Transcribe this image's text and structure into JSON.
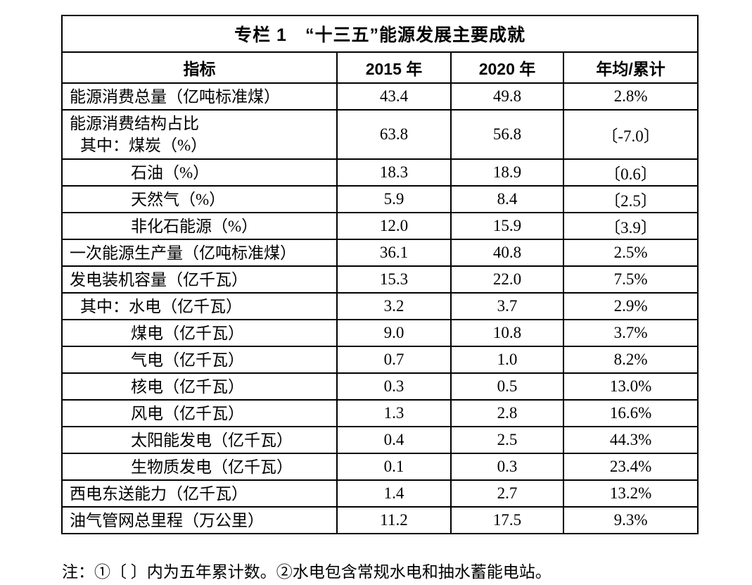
{
  "colors": {
    "text": "#000000",
    "border": "#000000",
    "background": "#ffffff"
  },
  "table": {
    "title": "专栏 1　“十三五”能源发展主要成就",
    "columns": [
      "指标",
      "2015 年",
      "2020 年",
      "年均/累计"
    ],
    "rows": [
      {
        "label": "能源消费总量（亿吨标准煤）",
        "indent": 0,
        "v2015": "43.4",
        "v2020": "49.8",
        "avg": "2.8%"
      },
      {
        "lines": [
          {
            "text": "能源消费结构占比",
            "indent": 0
          },
          {
            "text": "其中：煤炭（%）",
            "indent": 1
          }
        ],
        "v2015": "63.8",
        "v2020": "56.8",
        "avg": "〔-7.0〕"
      },
      {
        "label": "石油（%）",
        "indent": 2,
        "v2015": "18.3",
        "v2020": "18.9",
        "avg": "〔0.6〕"
      },
      {
        "label": "天然气（%）",
        "indent": 2,
        "v2015": "5.9",
        "v2020": "8.4",
        "avg": "〔2.5〕"
      },
      {
        "label": "非化石能源（%）",
        "indent": 2,
        "v2015": "12.0",
        "v2020": "15.9",
        "avg": "〔3.9〕"
      },
      {
        "label": "一次能源生产量（亿吨标准煤）",
        "indent": 0,
        "v2015": "36.1",
        "v2020": "40.8",
        "avg": "2.5%"
      },
      {
        "label": "发电装机容量（亿千瓦）",
        "indent": 0,
        "v2015": "15.3",
        "v2020": "22.0",
        "avg": "7.5%"
      },
      {
        "label": "其中：水电（亿千瓦）",
        "indent": 1,
        "v2015": "3.2",
        "v2020": "3.7",
        "avg": "2.9%"
      },
      {
        "label": "煤电（亿千瓦）",
        "indent": 2,
        "v2015": "9.0",
        "v2020": "10.8",
        "avg": "3.7%"
      },
      {
        "label": "气电（亿千瓦）",
        "indent": 2,
        "v2015": "0.7",
        "v2020": "1.0",
        "avg": "8.2%"
      },
      {
        "label": "核电（亿千瓦）",
        "indent": 2,
        "v2015": "0.3",
        "v2020": "0.5",
        "avg": "13.0%"
      },
      {
        "label": "风电（亿千瓦）",
        "indent": 2,
        "v2015": "1.3",
        "v2020": "2.8",
        "avg": "16.6%"
      },
      {
        "label": "太阳能发电（亿千瓦）",
        "indent": 2,
        "v2015": "0.4",
        "v2020": "2.5",
        "avg": "44.3%"
      },
      {
        "label": "生物质发电（亿千瓦）",
        "indent": 2,
        "v2015": "0.1",
        "v2020": "0.3",
        "avg": "23.4%"
      },
      {
        "label": "西电东送能力（亿千瓦）",
        "indent": 0,
        "v2015": "1.4",
        "v2020": "2.7",
        "avg": "13.2%"
      },
      {
        "label": "油气管网总里程（万公里）",
        "indent": 0,
        "v2015": "11.2",
        "v2020": "17.5",
        "avg": "9.3%"
      }
    ]
  },
  "note": "注：①〔 〕内为五年累计数。②水电包含常规水电和抽水蓄能电站。"
}
